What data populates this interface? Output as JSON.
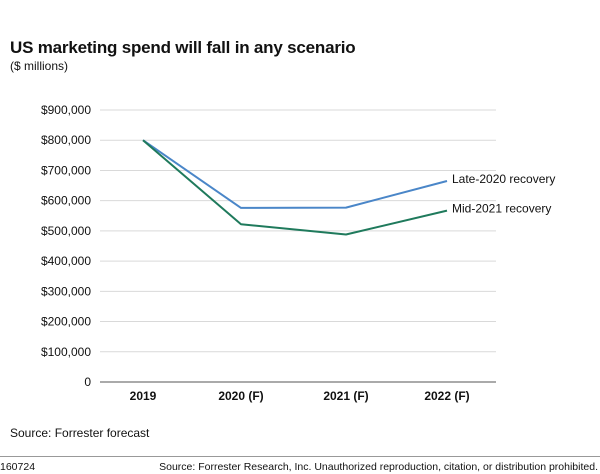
{
  "chart_data": {
    "type": "line",
    "title": "US marketing spend will fall in any scenario",
    "subtitle": "($ millions)",
    "categories": [
      "2019",
      "2020 (F)",
      "2021 (F)",
      "2022 (F)"
    ],
    "y_ticks": [
      "0",
      "$100,000",
      "$200,000",
      "$300,000",
      "$400,000",
      "$500,000",
      "$600,000",
      "$700,000",
      "$800,000",
      "$900,000"
    ],
    "ylim": [
      0,
      900000
    ],
    "grid": true,
    "series": [
      {
        "name": "Late-2020 recovery",
        "color": "#4a86c8",
        "values": [
          800000,
          576000,
          577000,
          665000
        ]
      },
      {
        "name": "Mid-2021 recovery",
        "color": "#1f7a5c",
        "values": [
          800000,
          522000,
          488000,
          567000
        ]
      }
    ],
    "legend": "inline-right",
    "source": "Source: Forrester forecast"
  },
  "footer": {
    "id": "160724",
    "copyright": "Source: Forrester Research, Inc. Unauthorized reproduction, citation, or distribution prohibited."
  }
}
